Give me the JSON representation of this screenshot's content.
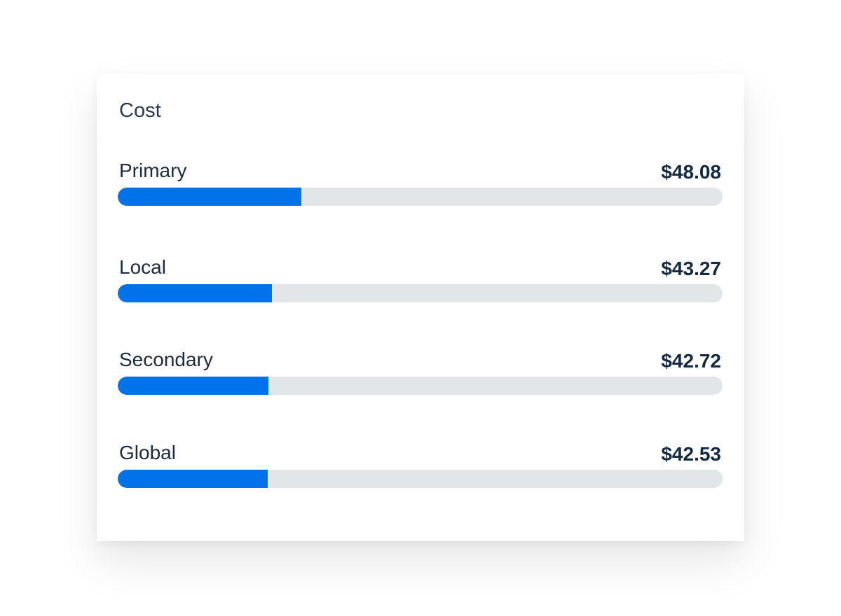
{
  "chart_data": {
    "type": "bar",
    "title": "Cost",
    "categories": [
      "Primary",
      "Local",
      "Secondary",
      "Global"
    ],
    "values": [
      48.08,
      43.27,
      42.72,
      42.53
    ],
    "value_labels": [
      "$48.08",
      "$43.27",
      "$42.72",
      "$42.53"
    ],
    "color": "#0073ea",
    "xlim": [
      18,
      117
    ]
  }
}
